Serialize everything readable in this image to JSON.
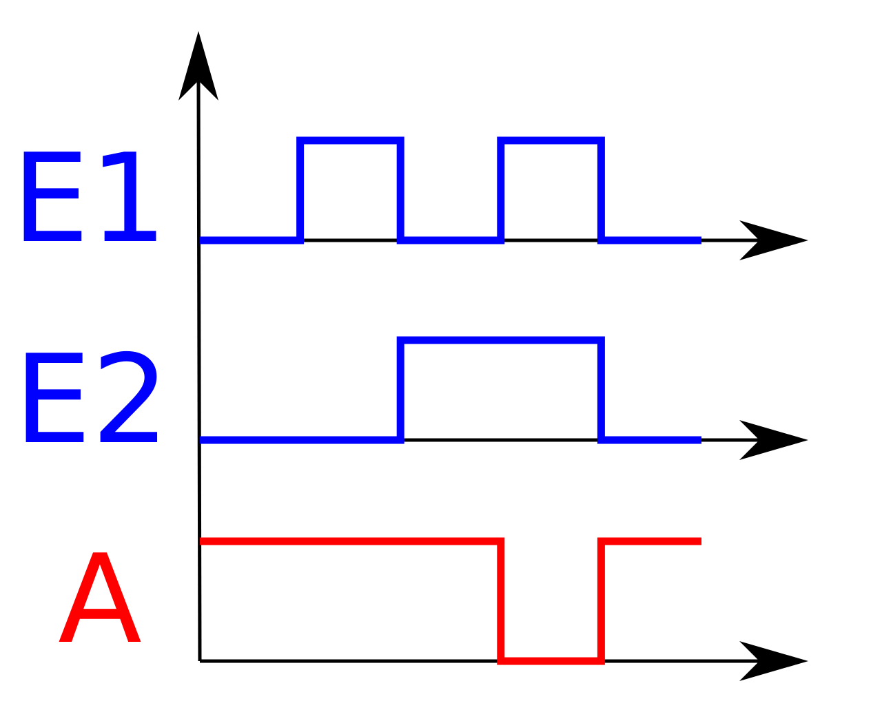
{
  "colors": {
    "axis": "#000000",
    "input_signal": "#0000ff",
    "output_signal": "#ff0000",
    "background": "#ffffff"
  },
  "signals": [
    {
      "label": "E1",
      "color": "#0000ff",
      "levels": [
        0,
        1,
        0,
        1,
        0
      ]
    },
    {
      "label": "E2",
      "color": "#0000ff",
      "levels": [
        0,
        0,
        1,
        1,
        0
      ]
    },
    {
      "label": "A",
      "color": "#ff0000",
      "levels": [
        1,
        1,
        1,
        0,
        1
      ]
    }
  ]
}
